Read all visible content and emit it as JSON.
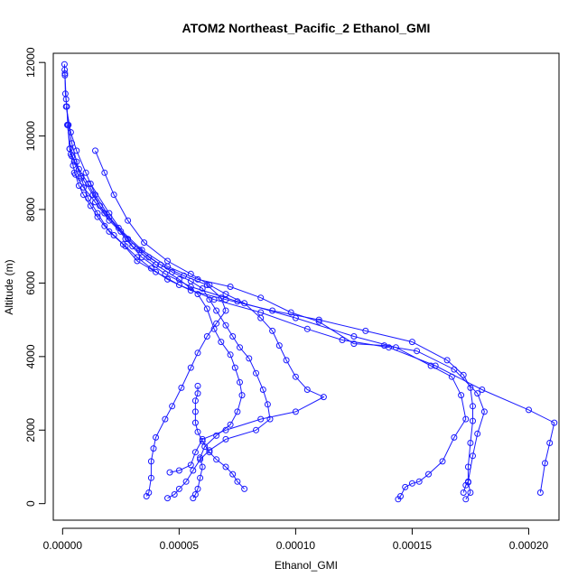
{
  "chart_data": {
    "type": "line",
    "title": "ATOM2 Northeast_Pacific_2 Ethanol_GMI",
    "xlabel": "Ethanol_GMI",
    "ylabel": "Altitude (m)",
    "xlim": [
      -4e-06,
      0.000213
    ],
    "ylim": [
      -450,
      12250
    ],
    "xticks": [
      0,
      5e-05,
      0.0001,
      0.00015,
      0.0002
    ],
    "xtick_labels": [
      "0.00000",
      "0.00005",
      "0.00010",
      "0.00015",
      "0.00020"
    ],
    "yticks": [
      0,
      2000,
      4000,
      6000,
      8000,
      10000,
      12000
    ],
    "ytick_labels": [
      "0",
      "2000",
      "4000",
      "6000",
      "8000",
      "10000",
      "12000"
    ],
    "grid": false,
    "colors": {
      "series": "#1a1aff",
      "axes": "#000000"
    },
    "series": [
      {
        "values": [
          [
            8e-07,
            11950
          ],
          [
            9e-07,
            11800
          ],
          [
            1e-06,
            11650
          ],
          [
            1.2e-06,
            11150
          ],
          [
            1.8e-06,
            10800
          ],
          [
            2.2e-06,
            10300
          ],
          [
            3e-06,
            9650
          ],
          [
            3.5e-06,
            9500
          ],
          [
            4.5e-06,
            9200
          ],
          [
            5.5e-06,
            8950
          ],
          [
            7e-06,
            8650
          ],
          [
            9e-06,
            8400
          ],
          [
            1.2e-05,
            8100
          ],
          [
            1.5e-05,
            7800
          ],
          [
            1.8e-05,
            7550
          ],
          [
            2.2e-05,
            7300
          ],
          [
            2.7e-05,
            7000
          ],
          [
            3.2e-05,
            6700
          ],
          [
            3.8e-05,
            6400
          ],
          [
            4.5e-05,
            6100
          ],
          [
            5.5e-05,
            5800
          ],
          [
            7e-05,
            5550
          ],
          [
            9e-05,
            5250
          ],
          [
            0.00011,
            5000
          ],
          [
            0.00013,
            4700
          ],
          [
            0.00015,
            4400
          ],
          [
            0.000165,
            3900
          ],
          [
            0.000172,
            3500
          ],
          [
            0.000175,
            3150
          ],
          [
            0.000176,
            2650
          ],
          [
            0.000176,
            2250
          ],
          [
            0.000175,
            1650
          ],
          [
            0.000174,
            1000
          ],
          [
            0.000174,
            580
          ],
          [
            0.000175,
            300
          ],
          [
            0.000173,
            120
          ]
        ]
      },
      {
        "values": [
          [
            1e-06,
            11700
          ],
          [
            1.5e-06,
            11000
          ],
          [
            2.5e-06,
            10300
          ],
          [
            4e-06,
            9800
          ],
          [
            6e-06,
            9300
          ],
          [
            8e-06,
            8850
          ],
          [
            1.1e-05,
            8300
          ],
          [
            1.5e-05,
            7900
          ],
          [
            2e-05,
            7400
          ],
          [
            2.6e-05,
            7050
          ],
          [
            3.2e-05,
            6600
          ],
          [
            4e-05,
            6300
          ],
          [
            5e-05,
            5950
          ],
          [
            6.5e-05,
            5550
          ],
          [
            8.5e-05,
            5200
          ],
          [
            0.000105,
            4750
          ],
          [
            0.00012,
            4450
          ],
          [
            0.00014,
            4250
          ],
          [
            0.00016,
            3750
          ],
          [
            0.00018,
            3100
          ],
          [
            0.0002,
            2550
          ],
          [
            0.000211,
            2200
          ],
          [
            0.000209,
            1650
          ],
          [
            0.000207,
            1100
          ],
          [
            0.000205,
            300
          ]
        ]
      },
      {
        "values": [
          [
            1.5e-06,
            10800
          ],
          [
            3.5e-06,
            10100
          ],
          [
            6e-06,
            9600
          ],
          [
            1e-05,
            9000
          ],
          [
            1.4e-05,
            8400
          ],
          [
            2e-05,
            7800
          ],
          [
            2.7e-05,
            7200
          ],
          [
            3.4e-05,
            6700
          ],
          [
            4.4e-05,
            6250
          ],
          [
            5.5e-05,
            5900
          ],
          [
            7.5e-05,
            5500
          ],
          [
            0.0001,
            5050
          ],
          [
            0.000125,
            4550
          ],
          [
            0.000143,
            4250
          ],
          [
            0.000158,
            3750
          ],
          [
            0.000167,
            3450
          ],
          [
            0.000171,
            2950
          ],
          [
            0.000173,
            2300
          ],
          [
            0.000168,
            1800
          ],
          [
            0.000163,
            1150
          ],
          [
            0.000157,
            800
          ],
          [
            0.000153,
            600
          ],
          [
            0.00015,
            550
          ],
          [
            0.000147,
            450
          ],
          [
            0.000145,
            200
          ],
          [
            0.000144,
            120
          ]
        ]
      },
      {
        "values": [
          [
            2e-06,
            10300
          ],
          [
            4e-06,
            9450
          ],
          [
            7e-06,
            9100
          ],
          [
            1.1e-05,
            8700
          ],
          [
            1.6e-05,
            8100
          ],
          [
            2.4e-05,
            7500
          ],
          [
            3.4e-05,
            6900
          ],
          [
            4.5e-05,
            6450
          ],
          [
            5.8e-05,
            6100
          ],
          [
            7.2e-05,
            5900
          ],
          [
            8.5e-05,
            5600
          ],
          [
            9.8e-05,
            5200
          ],
          [
            0.00011,
            4950
          ],
          [
            0.000125,
            4350
          ],
          [
            0.000138,
            4300
          ],
          [
            0.000152,
            4150
          ],
          [
            0.000168,
            3650
          ],
          [
            0.000178,
            3000
          ],
          [
            0.000181,
            2500
          ],
          [
            0.000178,
            1900
          ],
          [
            0.000176,
            1300
          ],
          [
            0.000174,
            600
          ],
          [
            0.000173,
            500
          ],
          [
            0.000172,
            300
          ]
        ]
      },
      {
        "values": [
          [
            3e-06,
            9650
          ],
          [
            5e-06,
            9300
          ],
          [
            8e-06,
            8900
          ],
          [
            1.3e-05,
            8400
          ],
          [
            1.8e-05,
            7900
          ],
          [
            2.5e-05,
            7400
          ],
          [
            3.3e-05,
            6900
          ],
          [
            4.2e-05,
            6500
          ],
          [
            5.2e-05,
            6200
          ],
          [
            6.2e-05,
            5950
          ],
          [
            6.8e-05,
            5600
          ],
          [
            7e-05,
            5250
          ],
          [
            6.6e-05,
            4900
          ],
          [
            6.2e-05,
            4550
          ],
          [
            5.8e-05,
            4100
          ],
          [
            5.5e-05,
            3700
          ],
          [
            5.1e-05,
            3150
          ],
          [
            4.7e-05,
            2650
          ],
          [
            4.4e-05,
            2300
          ],
          [
            4e-05,
            1800
          ],
          [
            3.9e-05,
            1500
          ],
          [
            3.8e-05,
            1150
          ],
          [
            3.8e-05,
            700
          ],
          [
            3.7e-05,
            300
          ],
          [
            3.6e-05,
            200
          ]
        ]
      },
      {
        "values": [
          [
            5e-06,
            9000
          ],
          [
            9e-06,
            8600
          ],
          [
            1.4e-05,
            8200
          ],
          [
            2e-05,
            7700
          ],
          [
            2.8e-05,
            7200
          ],
          [
            3.7e-05,
            6700
          ],
          [
            4.7e-05,
            6300
          ],
          [
            5.5e-05,
            6050
          ],
          [
            6e-05,
            5850
          ],
          [
            6.3e-05,
            5550
          ],
          [
            6.6e-05,
            5250
          ],
          [
            7e-05,
            4850
          ],
          [
            7.3e-05,
            4550
          ],
          [
            7.6e-05,
            4250
          ],
          [
            8e-05,
            3950
          ],
          [
            8.3e-05,
            3550
          ],
          [
            8.6e-05,
            3100
          ],
          [
            8.8e-05,
            2700
          ],
          [
            8.9e-05,
            2300
          ],
          [
            8.3e-05,
            2000
          ],
          [
            7e-05,
            1750
          ],
          [
            6.3e-05,
            1450
          ],
          [
            5.9e-05,
            1200
          ],
          [
            5.6e-05,
            900
          ],
          [
            5.3e-05,
            600
          ],
          [
            5e-05,
            400
          ],
          [
            4.8e-05,
            250
          ],
          [
            4.5e-05,
            150
          ]
        ]
      },
      {
        "values": [
          [
            1.2e-05,
            8700
          ],
          [
            2e-05,
            7900
          ],
          [
            3e-05,
            7000
          ],
          [
            4e-05,
            6500
          ],
          [
            5e-05,
            6100
          ],
          [
            5.8e-05,
            5700
          ],
          [
            6.2e-05,
            5300
          ],
          [
            6.5e-05,
            4750
          ],
          [
            6.8e-05,
            4400
          ],
          [
            7.2e-05,
            4050
          ],
          [
            7.4e-05,
            3700
          ],
          [
            7.6e-05,
            3300
          ],
          [
            7.7e-05,
            2950
          ],
          [
            7.5e-05,
            2500
          ],
          [
            7.2e-05,
            2150
          ],
          [
            6.6e-05,
            1850
          ],
          [
            6.1e-05,
            1550
          ],
          [
            5.9e-05,
            1250
          ],
          [
            6e-05,
            1000
          ],
          [
            5.9e-05,
            700
          ],
          [
            5.8e-05,
            400
          ],
          [
            5.7e-05,
            250
          ],
          [
            5.6e-05,
            150
          ]
        ]
      },
      {
        "values": [
          [
            1.4e-05,
            9600
          ],
          [
            1.8e-05,
            9000
          ],
          [
            2.2e-05,
            8400
          ],
          [
            2.8e-05,
            7700
          ],
          [
            3.5e-05,
            7100
          ],
          [
            4.5e-05,
            6600
          ],
          [
            5.5e-05,
            6250
          ],
          [
            6.3e-05,
            5950
          ],
          [
            7e-05,
            5700
          ],
          [
            7.8e-05,
            5450
          ],
          [
            8.5e-05,
            5050
          ],
          [
            9e-05,
            4700
          ],
          [
            9.3e-05,
            4300
          ],
          [
            9.6e-05,
            3900
          ],
          [
            0.0001,
            3450
          ],
          [
            0.000105,
            3100
          ],
          [
            0.000112,
            2900
          ],
          [
            0.0001,
            2500
          ],
          [
            8.5e-05,
            2300
          ],
          [
            7e-05,
            2000
          ],
          [
            6e-05,
            1750
          ],
          [
            5.7e-05,
            1400
          ],
          [
            5.5e-05,
            1050
          ],
          [
            5e-05,
            900
          ],
          [
            4.6e-05,
            850
          ]
        ]
      },
      {
        "values": [
          [
            5.8e-05,
            3200
          ],
          [
            5.8e-05,
            3000
          ],
          [
            5.7e-05,
            2800
          ],
          [
            5.7e-05,
            2500
          ],
          [
            5.7e-05,
            2200
          ],
          [
            5.8e-05,
            1950
          ],
          [
            6e-05,
            1700
          ],
          [
            6.3e-05,
            1400
          ],
          [
            6.6e-05,
            1200
          ],
          [
            7e-05,
            1000
          ],
          [
            7.3e-05,
            800
          ],
          [
            7.5e-05,
            600
          ],
          [
            7.8e-05,
            400
          ]
        ]
      }
    ]
  }
}
